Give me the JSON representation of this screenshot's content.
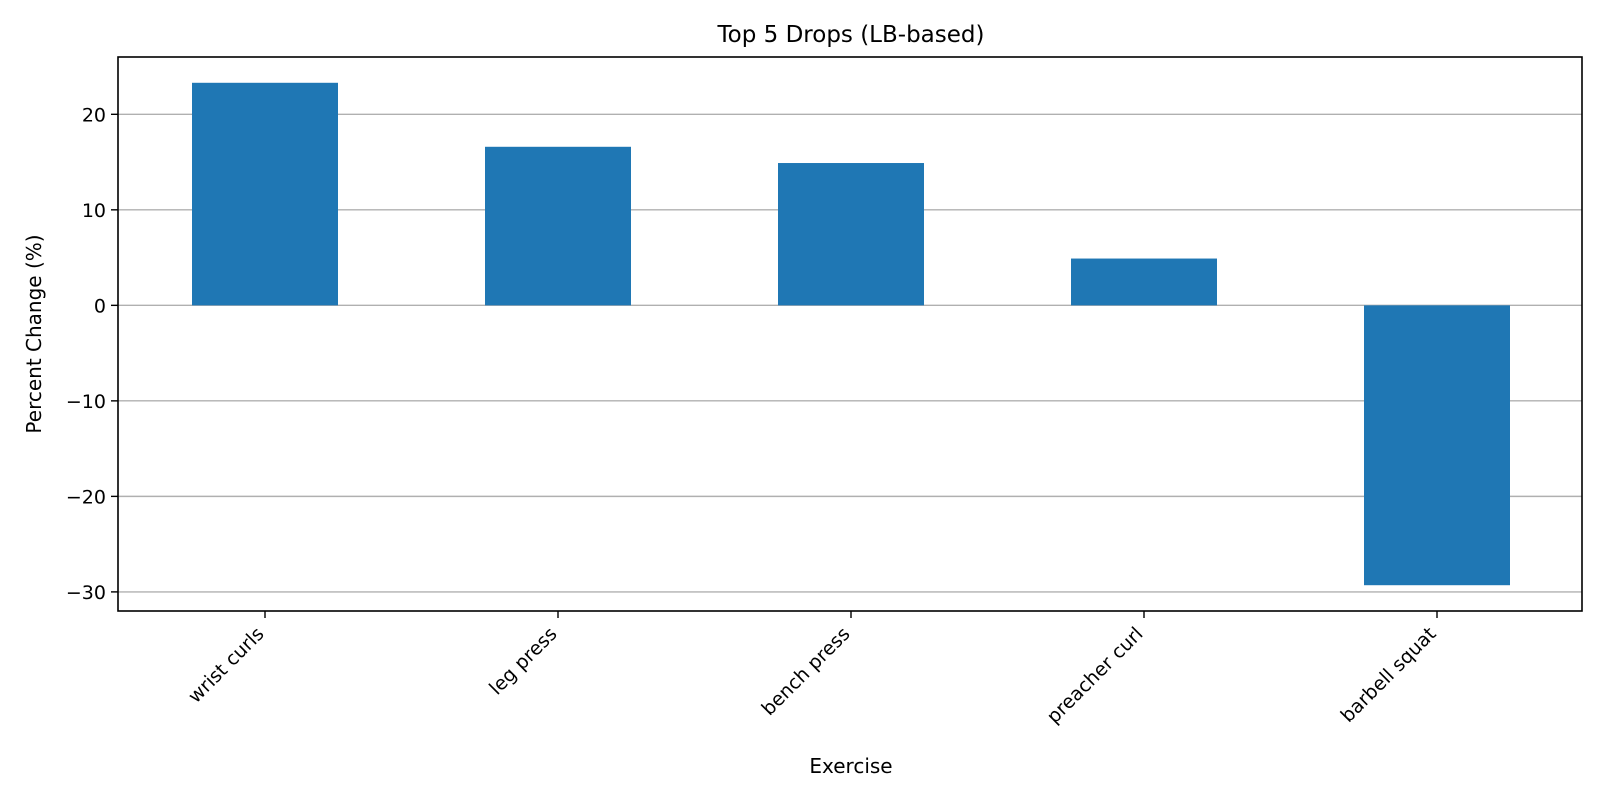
{
  "chart_data": {
    "type": "bar",
    "title": "Top 5 Drops (LB-based)",
    "xlabel": "Exercise",
    "ylabel": "Percent Change (%)",
    "categories": [
      "wrist curls",
      "leg press",
      "bench press",
      "preacher curl",
      "barbell squat"
    ],
    "values": [
      23.3,
      16.6,
      14.9,
      4.9,
      -29.3
    ],
    "ylim": [
      -32,
      26
    ],
    "yticks": [
      20,
      10,
      0,
      -10,
      -20,
      -30
    ],
    "ytick_labels": [
      "20",
      "10",
      "0",
      "−10",
      "−20",
      "−30"
    ],
    "grid": "horizontal",
    "bar_color": "#1f77b4"
  }
}
